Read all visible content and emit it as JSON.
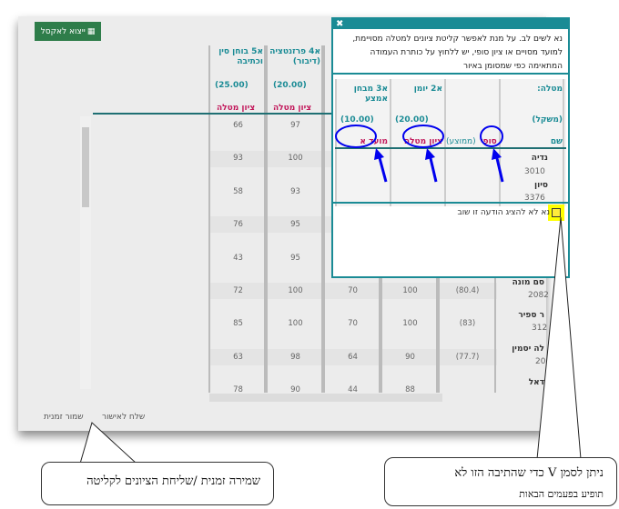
{
  "toolbar": {
    "export_label": "ייצוא לאקסל",
    "export_icon": "table-grid-icon"
  },
  "columns": [
    {
      "title": "א5 בוחן סין וכתיבה",
      "weight": "(25.00)",
      "sub": "ציון מטלה",
      "values": [
        "66",
        "93",
        "58",
        "76",
        "43",
        "72",
        "85",
        "63",
        "78"
      ]
    },
    {
      "title": "א4 פרזנטציה (דיבור)",
      "weight": "(20.00)",
      "sub": "ציון מטלה",
      "values": [
        "97",
        "100",
        "93",
        "95",
        "95",
        "100",
        "100",
        "98",
        "90"
      ]
    },
    {
      "values": [
        "",
        "",
        "",
        "",
        "",
        "70",
        "70",
        "64",
        "44"
      ]
    },
    {
      "values": [
        "",
        "",
        "",
        "",
        "",
        "100",
        "100",
        "90",
        "88"
      ]
    },
    {
      "values": [
        "",
        "",
        "",
        "",
        "",
        "(80.4)",
        "(83)",
        "(77.7)",
        ""
      ]
    }
  ],
  "students": [
    {
      "name": "סם מונה",
      "id": "2082"
    },
    {
      "name": "ר ספיר",
      "id": "312"
    },
    {
      "name": "לה יסמין",
      "id": "20"
    },
    {
      "name": "דאל",
      "id": ""
    }
  ],
  "footer": {
    "send_label": "שלח לאישור",
    "save_label": "שמור זמנית"
  },
  "dialog": {
    "close": "✖",
    "message": "נא לשים לב. על מנת לאפשר קליטת ציונים למטלה מסויימת, למועד מסויים או ציון סופי, יש ללחוץ על כותרת העמודה המתאימה כפי שמסומן באיור",
    "task_label": "מטלה:",
    "weight_label": "(משקל)",
    "name_label": "שם",
    "final_label": "סופי",
    "avg_label": "(ממוצע)",
    "col_journal": "א2 יומן",
    "col_journal_weight": "(20.00)",
    "col_journal_sub": "ציון מטלה",
    "col_exam": "א3 מבחן אמצע",
    "col_exam_weight": "(10.00)",
    "col_exam_sub": "מועד א",
    "students": [
      {
        "name": "נדיה",
        "id": "3010"
      },
      {
        "name": "סיון",
        "id": "3376"
      }
    ],
    "checkbox_label": "נא לא להציג הודעה זו שוב",
    "checkbox_checked": false
  },
  "annotations": {
    "left": "שמירה זמנית  /שליחת הציונים לקליטה",
    "right_line1": "ניתן לסמן  V כדי שהתיבה הזו לא",
    "right_line2": "תופיע בפעמים הבאות"
  },
  "colors": {
    "accent": "#1a8b95",
    "highlight": "#c2185b",
    "excel": "#2e7d4a",
    "annotation": "#0000ff"
  }
}
